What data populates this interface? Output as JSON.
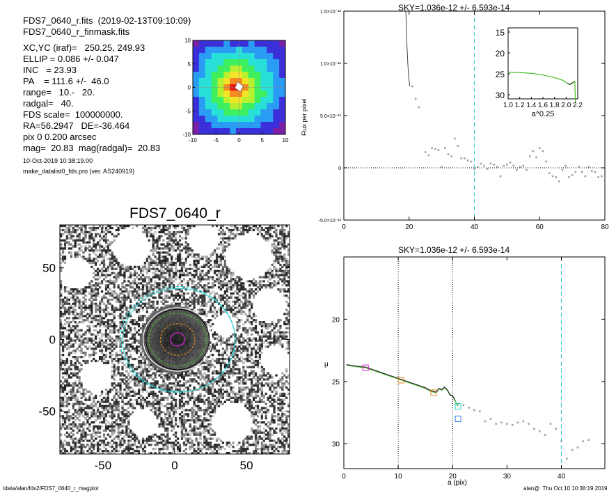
{
  "info": {
    "file_line": "FDS7_0640_r.fits  (2019-02-13T09:10:09)",
    "mask_line": "FDS7_0640_r_finmask.fits",
    "xcyc": "XC,YC (iraf)=   250.25, 249.93",
    "ellip": "ELLIP = 0.086 +/- 0.047",
    "inc": "INC   = 23.93",
    "pa": "PA    = 111.6 +/-  46.0",
    "range": "range=   10.-   20.",
    "radgal": "radgal=   40.",
    "fds_scale": "FDS scale=  100000000.",
    "radec": "RA=56.2947   DE=-36.464",
    "pix": "pix 0 0.200 arcsec",
    "mag": "mag=  20.83  mag(radgal)=  20.83",
    "date": "10-Oct-2019 10:38:19.00",
    "program": "make_datalist0_fds.pro (ver. AS240919)"
  },
  "footer": {
    "path": "/data/alan/fds2/FDS7_0640_r_magplot",
    "stamp": "alan@  Thu Oct 10 10:38:19 2019"
  },
  "colors": {
    "cyan": "#22cccc",
    "green": "#44bb22",
    "grey_pts": "#a0a0a0",
    "magenta": "#dd22dd",
    "orange": "#e08a20",
    "blue": "#3377dd"
  },
  "chart_data": [
    {
      "id": "contour",
      "type": "heatmap",
      "xlim": [
        -10,
        10
      ],
      "ylim": [
        -10,
        10
      ],
      "xticks": [
        "-10",
        "-5",
        "0",
        "5",
        "10"
      ],
      "yticks": [
        "10",
        "5",
        "0",
        "-5",
        "-10"
      ],
      "grid": [
        [
          0,
          1,
          1,
          1,
          1,
          2,
          1,
          1,
          1,
          2,
          1,
          1,
          1,
          1,
          0
        ],
        [
          1,
          1,
          2,
          2,
          2,
          2,
          2,
          3,
          2,
          2,
          2,
          2,
          1,
          1,
          1
        ],
        [
          1,
          2,
          2,
          3,
          3,
          3,
          3,
          3,
          3,
          3,
          2,
          2,
          2,
          1,
          1
        ],
        [
          1,
          2,
          3,
          3,
          3,
          4,
          4,
          4,
          4,
          3,
          3,
          3,
          2,
          2,
          1
        ],
        [
          1,
          2,
          3,
          3,
          4,
          4,
          5,
          5,
          4,
          4,
          3,
          3,
          2,
          2,
          1
        ],
        [
          2,
          2,
          3,
          4,
          4,
          5,
          6,
          6,
          5,
          4,
          4,
          3,
          3,
          2,
          1
        ],
        [
          2,
          3,
          3,
          4,
          5,
          6,
          7,
          7,
          6,
          5,
          4,
          3,
          3,
          2,
          2
        ],
        [
          2,
          3,
          3,
          4,
          5,
          7,
          8,
          8,
          7,
          5,
          4,
          3,
          3,
          2,
          2
        ],
        [
          2,
          3,
          3,
          4,
          5,
          6,
          7,
          7,
          6,
          5,
          4,
          4,
          3,
          2,
          2
        ],
        [
          1,
          2,
          3,
          4,
          4,
          5,
          6,
          6,
          5,
          5,
          4,
          3,
          3,
          2,
          1
        ],
        [
          1,
          2,
          3,
          3,
          4,
          4,
          5,
          5,
          4,
          4,
          3,
          3,
          2,
          2,
          1
        ],
        [
          1,
          2,
          2,
          3,
          3,
          4,
          4,
          4,
          4,
          3,
          3,
          2,
          2,
          1,
          1
        ],
        [
          1,
          1,
          2,
          2,
          3,
          3,
          3,
          3,
          3,
          3,
          2,
          2,
          2,
          1,
          1
        ],
        [
          0,
          1,
          1,
          2,
          2,
          2,
          2,
          2,
          2,
          2,
          2,
          1,
          1,
          1,
          0
        ],
        [
          0,
          1,
          1,
          1,
          1,
          1,
          2,
          1,
          1,
          1,
          1,
          1,
          1,
          0,
          0
        ]
      ],
      "palette": [
        "#7a1fa8",
        "#3a2fd8",
        "#2a9cf4",
        "#28e0d8",
        "#3ef060",
        "#b8f030",
        "#f2e428",
        "#f28a20",
        "#e81818"
      ]
    },
    {
      "id": "image",
      "type": "heatmap",
      "title": "FDS7_0640_r",
      "xlim": [
        -80,
        80
      ],
      "ylim": [
        -80,
        80
      ],
      "xticks": [
        "-50",
        "0",
        "50"
      ],
      "yticks": [
        "50",
        "0",
        "-50"
      ],
      "masked_regions": [
        {
          "x": -30,
          "y": 64,
          "r": 13
        },
        {
          "x": 20,
          "y": 70,
          "r": 11
        },
        {
          "x": 52,
          "y": 58,
          "r": 16
        },
        {
          "x": -68,
          "y": 46,
          "r": 11
        },
        {
          "x": -55,
          "y": -26,
          "r": 11
        },
        {
          "x": -22,
          "y": -58,
          "r": 10
        },
        {
          "x": 40,
          "y": -58,
          "r": 14
        },
        {
          "x": 70,
          "y": -14,
          "r": 10
        },
        {
          "x": 66,
          "y": 24,
          "r": 12
        },
        {
          "x": 35,
          "y": 10,
          "r": 8
        }
      ],
      "ellipses_r": [
        40,
        24,
        20,
        12,
        5
      ]
    },
    {
      "id": "sky",
      "type": "scatter",
      "title": "SKY=1.036e-12 +/- 6.593e-14",
      "xlabel": "",
      "ylabel": "Flux per pixel",
      "xlim": [
        0,
        80
      ],
      "ylim": [
        -5e-13,
        1.5e-12
      ],
      "xticks": [
        "0",
        "20",
        "40",
        "60",
        "80"
      ],
      "yticks": [
        "-5.0×10⁻¹³",
        "0",
        "5.0×10⁻¹³",
        "1.0×10⁻¹²",
        "1.5×10⁻¹²"
      ],
      "curve": [
        [
          19.0,
          1.5e-12
        ],
        [
          19.3,
          1.2e-12
        ],
        [
          19.6,
          1e-12
        ],
        [
          19.9,
          8.6e-13
        ],
        [
          20.2,
          7.8e-13
        ]
      ],
      "points": [
        [
          21,
          7.8e-13
        ],
        [
          22,
          6.6e-13
        ],
        [
          23,
          5.8e-13
        ],
        [
          25,
          1.5e-13
        ],
        [
          26,
          1.2e-13
        ],
        [
          27,
          1.9e-13
        ],
        [
          28,
          1.8e-13
        ],
        [
          29,
          1.7e-13
        ],
        [
          30,
          1e-14
        ],
        [
          31,
          1.9e-13
        ],
        [
          32,
          1.3e-13
        ],
        [
          33,
          1.1e-13
        ],
        [
          34,
          2.8e-13
        ],
        [
          35,
          2.1e-13
        ],
        [
          36,
          9e-14
        ],
        [
          37,
          9e-14
        ],
        [
          38,
          7e-14
        ],
        [
          39,
          6e-14
        ],
        [
          40,
          -1e-14
        ],
        [
          41,
          1e-14
        ],
        [
          42,
          4e-14
        ],
        [
          43,
          2e-14
        ],
        [
          44,
          -1e-14
        ],
        [
          45,
          4e-14
        ],
        [
          46,
          3e-14
        ],
        [
          47,
          1e-14
        ],
        [
          48,
          -8e-14
        ],
        [
          49,
          2e-14
        ],
        [
          50,
          3e-14
        ],
        [
          51,
          5e-14
        ],
        [
          52,
          2e-14
        ],
        [
          53,
          -2e-14
        ],
        [
          54,
          1e-14
        ],
        [
          55,
          2e-14
        ],
        [
          56,
          -2e-14
        ],
        [
          57,
          1.1e-13
        ],
        [
          58,
          1.6e-13
        ],
        [
          59,
          1e-13
        ],
        [
          60,
          1.9e-13
        ],
        [
          61,
          1.6e-13
        ],
        [
          62,
          6e-14
        ],
        [
          63,
          -5e-14
        ],
        [
          64,
          -8e-14
        ],
        [
          65,
          -9e-14
        ],
        [
          66,
          -1.3e-13
        ],
        [
          67,
          -2e-14
        ],
        [
          68,
          2e-14
        ],
        [
          69,
          -9e-14
        ],
        [
          70,
          -7e-14
        ],
        [
          71,
          -4e-14
        ],
        [
          72,
          1e-14
        ],
        [
          73,
          -4e-14
        ],
        [
          74,
          -8e-14
        ],
        [
          75,
          1e-14
        ],
        [
          76,
          -3e-14
        ],
        [
          77,
          -4e-14
        ],
        [
          78,
          -9e-14
        ],
        [
          79,
          -8e-14
        ]
      ],
      "zero_line": 0,
      "vline": 40,
      "inset": {
        "xlabel": "a^0.25",
        "xlim": [
          1.0,
          2.2
        ],
        "ylim": [
          31,
          14
        ],
        "xticks": [
          "1.0",
          "1.2",
          "1.4",
          "1.6",
          "1.8",
          "2.0",
          "2.2"
        ],
        "yticks": [
          "15",
          "20",
          "25",
          "30"
        ],
        "green": [
          [
            1.0,
            24.6
          ],
          [
            1.2,
            24.7
          ],
          [
            1.4,
            24.9
          ],
          [
            1.6,
            25.3
          ],
          [
            1.8,
            25.9
          ],
          [
            1.95,
            26.6
          ],
          [
            2.0,
            27.1
          ],
          [
            2.05,
            27.5
          ],
          [
            2.1,
            27.2
          ],
          [
            2.15,
            26.8
          ],
          [
            2.16,
            32.0
          ]
        ],
        "dark": [
          [
            2.02,
            27.2
          ],
          [
            2.06,
            27.6
          ],
          [
            2.1,
            27.3
          ],
          [
            2.14,
            26.9
          ]
        ]
      }
    },
    {
      "id": "profile",
      "type": "line",
      "title": "SKY=1.036e-12 +/- 6.593e-14",
      "xlabel": "a (pix)",
      "ylabel": "μ",
      "xlim": [
        0,
        48
      ],
      "ylim": [
        32,
        15
      ],
      "xticks": [
        "0",
        "10",
        "20",
        "30",
        "40"
      ],
      "yticks": [
        "20",
        "25",
        "30"
      ],
      "vlines_dotted": [
        10,
        20
      ],
      "vline_dashed": 40,
      "series": [
        {
          "color": "green",
          "values": [
            [
              0.5,
              23.7
            ],
            [
              2,
              23.8
            ],
            [
              4,
              23.9
            ],
            [
              6,
              24.2
            ],
            [
              8,
              24.5
            ],
            [
              10,
              24.8
            ],
            [
              12,
              25.1
            ],
            [
              14,
              25.4
            ],
            [
              15,
              25.55
            ],
            [
              16,
              25.8
            ],
            [
              17,
              25.9
            ],
            [
              17.5,
              25.6
            ],
            [
              18,
              25.7
            ],
            [
              18.5,
              25.5
            ],
            [
              19,
              25.7
            ],
            [
              19.5,
              26.1
            ],
            [
              20,
              26.2
            ],
            [
              20.5,
              26.6
            ],
            [
              21,
              27.0
            ]
          ]
        },
        {
          "color": "dark",
          "values": [
            [
              0.5,
              23.65
            ],
            [
              2,
              23.75
            ],
            [
              4,
              23.85
            ],
            [
              6,
              24.15
            ],
            [
              8,
              24.45
            ],
            [
              10,
              24.75
            ],
            [
              12,
              25.05
            ],
            [
              14,
              25.35
            ],
            [
              15,
              25.5
            ],
            [
              16,
              25.75
            ],
            [
              17,
              25.85
            ],
            [
              17.5,
              25.55
            ],
            [
              18,
              25.65
            ],
            [
              18.5,
              25.45
            ],
            [
              19,
              25.65
            ],
            [
              19.5,
              26.05
            ],
            [
              20,
              26.15
            ],
            [
              20.5,
              26.55
            ]
          ]
        }
      ],
      "points": [
        [
          21,
          26.8
        ],
        [
          22,
          26.9
        ],
        [
          23,
          27.1
        ],
        [
          24,
          27.3
        ],
        [
          25,
          27.4
        ],
        [
          26,
          28.2
        ],
        [
          27,
          28.0
        ],
        [
          28,
          28.4
        ],
        [
          29,
          28.3
        ],
        [
          30,
          28.4
        ],
        [
          31,
          28.5
        ],
        [
          32,
          28.3
        ],
        [
          33,
          28.2
        ],
        [
          34,
          28.4
        ],
        [
          35,
          28.8
        ],
        [
          36,
          29.0
        ],
        [
          37,
          29.3
        ],
        [
          38,
          28.4
        ],
        [
          39,
          28.8
        ],
        [
          40,
          29.8
        ],
        [
          41,
          31.2
        ],
        [
          42,
          30.5
        ],
        [
          43,
          30.3
        ],
        [
          44,
          29.8
        ],
        [
          45,
          29.7
        ]
      ],
      "markers": [
        {
          "x": 4,
          "y": 23.9,
          "color": "magenta"
        },
        {
          "x": 10.5,
          "y": 24.9,
          "color": "orange"
        },
        {
          "x": 16.5,
          "y": 25.9,
          "color": "orange"
        },
        {
          "x": 21,
          "y": 27.0,
          "color": "cyan"
        },
        {
          "x": 21,
          "y": 28.0,
          "color": "blue"
        }
      ]
    }
  ]
}
